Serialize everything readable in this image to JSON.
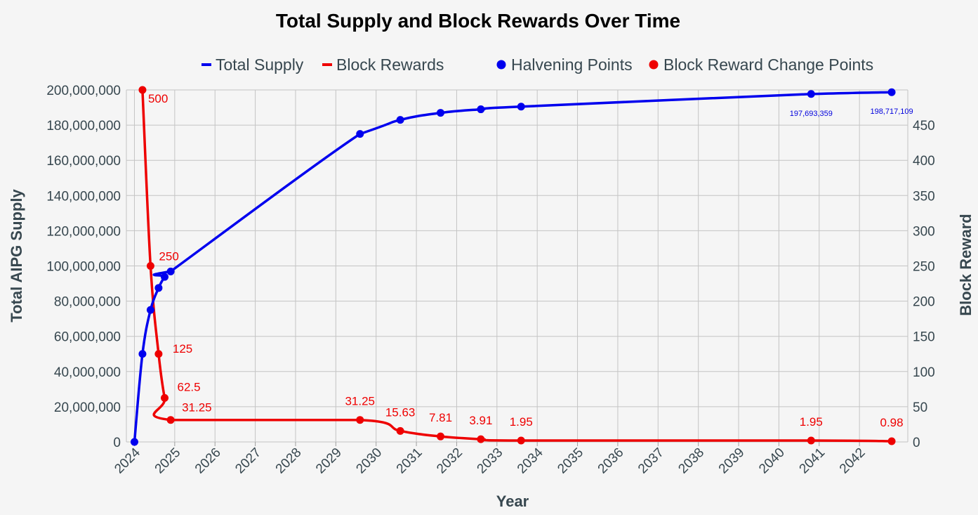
{
  "chart_data": {
    "type": "line",
    "title": "Total Supply and Block Rewards Over Time",
    "xlabel": "Year",
    "ylabel_left": "Total AIPG Supply",
    "ylabel_right": "Block Reward",
    "x_ticks": [
      "2024",
      "2025",
      "2026",
      "2027",
      "2028",
      "2029",
      "2030",
      "2031",
      "2032",
      "2033",
      "2034",
      "2035",
      "2036",
      "2037",
      "2038",
      "2039",
      "2040",
      "2041",
      "2042"
    ],
    "x_range": [
      2023.8,
      2043.2
    ],
    "y_left": {
      "range": [
        0,
        200000000
      ],
      "ticks": [
        "0",
        "20,000,000",
        "40,000,000",
        "60,000,000",
        "80,000,000",
        "100,000,000",
        "120,000,000",
        "140,000,000",
        "160,000,000",
        "180,000,000",
        "200,000,000"
      ]
    },
    "y_right": {
      "range": [
        0,
        500
      ],
      "ticks": [
        "0",
        "50",
        "100",
        "150",
        "200",
        "250",
        "300",
        "350",
        "400",
        "450"
      ]
    },
    "grid": true,
    "legend": {
      "placement": "top",
      "items": [
        {
          "label": "Total Supply",
          "kind": "line",
          "color": "#0000ee"
        },
        {
          "label": "Block Rewards",
          "kind": "line",
          "color": "#ee0000"
        },
        {
          "label": "Halvening Points",
          "kind": "dot",
          "color": "#0000ee"
        },
        {
          "label": "Block Reward Change Points",
          "kind": "dot",
          "color": "#ee0000"
        }
      ]
    },
    "series": [
      {
        "name": "Total Supply",
        "axis": "left",
        "color": "#0000ee",
        "x": [
          2024.0,
          2024.2,
          2024.4,
          2024.6,
          2024.75,
          2024.9,
          2029.6,
          2030.6,
          2031.6,
          2032.6,
          2033.6,
          2040.8,
          2042.8
        ],
        "y": [
          0,
          50000000,
          75000000,
          87500000,
          93750000,
          96875000,
          175000000,
          183000000,
          187000000,
          189000000,
          190500000,
          197693359,
          198717109
        ],
        "markers": [
          false,
          true,
          true,
          true,
          true,
          true,
          true,
          true,
          true,
          true,
          true,
          true,
          true
        ],
        "labels": [
          "",
          "",
          "",
          "",
          "",
          "",
          "",
          "",
          "",
          "",
          "",
          "197,693,359",
          "198,717,109"
        ]
      },
      {
        "name": "Block Rewards",
        "axis": "right",
        "color": "#ee0000",
        "x": [
          2024.2,
          2024.4,
          2024.6,
          2024.75,
          2024.9,
          2029.6,
          2030.6,
          2031.6,
          2032.6,
          2033.6,
          2040.8,
          2042.8
        ],
        "y": [
          500,
          250,
          125,
          62.5,
          31.25,
          31.25,
          15.63,
          7.81,
          3.91,
          1.95,
          1.95,
          0.98
        ],
        "labels": [
          "500",
          "250",
          "125",
          "62.5",
          "31.25",
          "31.25",
          "15.63",
          "7.81",
          "3.91",
          "1.95",
          "1.95",
          "0.98"
        ]
      }
    ]
  }
}
